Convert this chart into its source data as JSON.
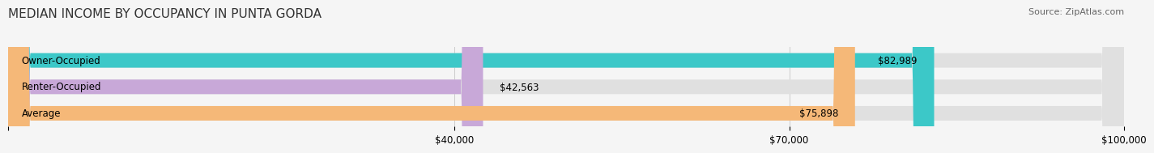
{
  "title": "MEDIAN INCOME BY OCCUPANCY IN PUNTA GORDA",
  "source": "Source: ZipAtlas.com",
  "categories": [
    "Owner-Occupied",
    "Renter-Occupied",
    "Average"
  ],
  "values": [
    82989,
    42563,
    75898
  ],
  "labels": [
    "$82,989",
    "$42,563",
    "$75,898"
  ],
  "bar_colors": [
    "#3cc8c8",
    "#c8a8d8",
    "#f5b878"
  ],
  "bar_bg_color": "#e0e0e0",
  "xmin": 0,
  "xmax": 100000,
  "xticks": [
    0,
    40000,
    70000,
    100000
  ],
  "xticklabels": [
    "",
    "$40,000",
    "$70,000",
    "$100,000"
  ],
  "title_fontsize": 11,
  "source_fontsize": 8,
  "label_fontsize": 8.5,
  "bar_height": 0.55,
  "background_color": "#f5f5f5"
}
